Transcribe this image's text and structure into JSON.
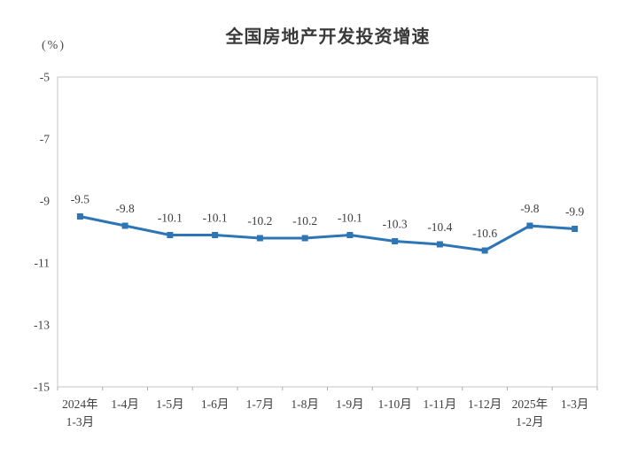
{
  "chart_data": {
    "type": "line",
    "title": "全国房地产开发投资增速",
    "ylabel": "(%)",
    "xlabel": "",
    "categories": [
      [
        "2024年",
        "1-3月"
      ],
      [
        "1-4月"
      ],
      [
        "1-5月"
      ],
      [
        "1-6月"
      ],
      [
        "1-7月"
      ],
      [
        "1-8月"
      ],
      [
        "1-9月"
      ],
      [
        "1-10月"
      ],
      [
        "1-11月"
      ],
      [
        "1-12月"
      ],
      [
        "2025年",
        "1-2月"
      ],
      [
        "1-3月"
      ]
    ],
    "series": [
      {
        "name": "全国房地产开发投资增速",
        "values": [
          -9.5,
          -9.8,
          -10.1,
          -10.1,
          -10.2,
          -10.2,
          -10.1,
          -10.3,
          -10.4,
          -10.6,
          -9.8,
          -9.9
        ]
      }
    ],
    "ylim": [
      -5,
      -15
    ],
    "yticks": [
      -5,
      -7,
      -9,
      -11,
      -13,
      -15
    ],
    "grid": false,
    "legend": "none",
    "data_labels_shown": true,
    "marker": "square",
    "colors": {
      "line": "#2E75B6",
      "marker": "#2E75B6",
      "data_label": "#3d3d3d",
      "axis_text": "#404040",
      "plot_border": "#c6c6c6",
      "tick": "#adadad",
      "title": "#3a3a3a"
    }
  }
}
